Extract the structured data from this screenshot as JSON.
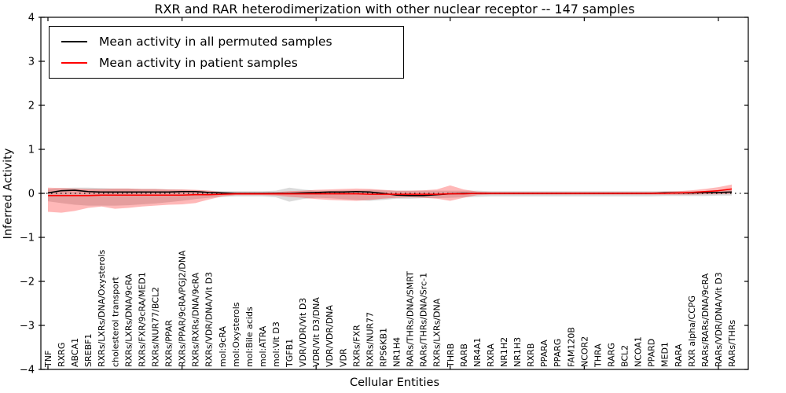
{
  "figure": {
    "background": "#ffffff"
  },
  "chart_data": {
    "type": "line",
    "title": "RXR and RAR heterodimerization with other nuclear receptor -- 147 samples",
    "xlabel": "Cellular Entities",
    "ylabel": "Inferred Activity",
    "ylim": [
      -4,
      4
    ],
    "yticks": [
      4,
      3,
      2,
      1,
      0,
      -1,
      -2,
      -3,
      -4
    ],
    "ytick_labels": [
      "4",
      "3",
      "2",
      "1",
      "0",
      "−1",
      "−2",
      "−3",
      "−4"
    ],
    "xtick_category_indices": [
      0,
      10,
      20,
      30,
      40,
      50
    ],
    "grid": false,
    "legend_position": "upper left",
    "zero_line": {
      "style": "dotted",
      "color": "#000000",
      "y": 0
    },
    "categories": [
      "TNF",
      "RXRG",
      "ABCA1",
      "SREBF1",
      "RXRs/LXRs/DNA/Oxysterols",
      "cholesterol transport",
      "RXRs/LXRs/DNA/9cRA",
      "RXRs/FXR/9cRA/MED1",
      "RXRs/NUR77/BCL2",
      "RXRs/PPAR",
      "RXRs/PPAR/9cRA/PGJ2/DNA",
      "RXRs/RXRs/DNA/9cRA",
      "RXRs/VDR/DNA/Vit D3",
      "mol:9cRA",
      "mol:Oxysterols",
      "mol:Bile acids",
      "mol:ATRA",
      "mol:Vit D3",
      "TGFB1",
      "VDR/VDR/Vit D3",
      "VDR/Vit D3/DNA",
      "VDR/VDR/DNA",
      "VDR",
      "RXRs/FXR",
      "RXRs/NUR77",
      "RPS6KB1",
      "NR1H4",
      "RARs/THRs/DNA/SMRT",
      "RARs/THRs/DNA/Src-1",
      "RXRs/LXRs/DNA",
      "THRB",
      "RARB",
      "NR4A1",
      "RXRA",
      "NR1H2",
      "NR1H3",
      "RXRB",
      "PPARA",
      "PPARG",
      "FAM120B",
      "NCOR2",
      "THRA",
      "RARG",
      "BCL2",
      "NCOA1",
      "PPARD",
      "MED1",
      "RARA",
      "RXR alpha/CCPG",
      "RARs/RARs/DNA/9cRA",
      "RARs/VDR/DNA/Vit D3",
      "RARs/THRs"
    ],
    "series": [
      {
        "name": "Mean activity in all permuted samples",
        "color": "#000000",
        "values": [
          0.01,
          0.06,
          0.07,
          0.04,
          0.03,
          0.03,
          0.03,
          0.03,
          0.03,
          0.03,
          0.04,
          0.04,
          0.02,
          0.01,
          0.0,
          0.0,
          0.0,
          0.0,
          0.0,
          0.01,
          0.02,
          0.03,
          0.03,
          0.04,
          0.03,
          0.0,
          -0.04,
          -0.05,
          -0.05,
          -0.03,
          -0.01,
          0.0,
          0.0,
          0.0,
          0.0,
          0.0,
          0.0,
          0.0,
          0.0,
          0.0,
          0.0,
          0.0,
          0.0,
          0.0,
          0.0,
          0.0,
          0.01,
          0.01,
          0.01,
          0.02,
          0.02,
          0.03
        ]
      },
      {
        "name": "Mean activity in patient samples",
        "color": "#ff0000",
        "values": [
          -0.05,
          -0.05,
          -0.05,
          -0.05,
          -0.04,
          -0.04,
          -0.04,
          -0.04,
          -0.04,
          -0.04,
          -0.04,
          -0.03,
          -0.03,
          -0.02,
          -0.01,
          -0.01,
          -0.01,
          -0.01,
          -0.01,
          -0.01,
          -0.01,
          -0.01,
          -0.01,
          -0.01,
          -0.02,
          -0.02,
          -0.02,
          -0.02,
          -0.02,
          -0.02,
          -0.01,
          -0.01,
          0.0,
          0.0,
          0.0,
          0.0,
          0.0,
          0.0,
          0.0,
          0.0,
          0.0,
          0.0,
          0.0,
          0.0,
          0.0,
          0.0,
          0.0,
          0.01,
          0.02,
          0.04,
          0.06,
          0.1
        ]
      }
    ],
    "bands": [
      {
        "name": "permuted-spread",
        "color": "#000000",
        "opacity": 0.14,
        "upper": [
          0.1,
          0.12,
          0.13,
          0.13,
          0.12,
          0.11,
          0.11,
          0.1,
          0.1,
          0.09,
          0.08,
          0.07,
          0.06,
          0.05,
          0.05,
          0.05,
          0.05,
          0.06,
          0.13,
          0.09,
          0.06,
          0.06,
          0.07,
          0.07,
          0.08,
          0.07,
          0.06,
          0.06,
          0.06,
          0.06,
          0.06,
          0.06,
          0.06,
          0.05,
          0.05,
          0.05,
          0.05,
          0.05,
          0.05,
          0.05,
          0.05,
          0.05,
          0.05,
          0.05,
          0.05,
          0.05,
          0.05,
          0.05,
          0.05,
          0.05,
          0.06,
          0.07
        ],
        "lower": [
          -0.18,
          -0.22,
          -0.26,
          -0.28,
          -0.28,
          -0.28,
          -0.27,
          -0.25,
          -0.23,
          -0.2,
          -0.17,
          -0.13,
          -0.1,
          -0.08,
          -0.07,
          -0.07,
          -0.07,
          -0.09,
          -0.19,
          -0.13,
          -0.1,
          -0.11,
          -0.13,
          -0.15,
          -0.17,
          -0.15,
          -0.12,
          -0.12,
          -0.11,
          -0.11,
          -0.1,
          -0.09,
          -0.08,
          -0.07,
          -0.07,
          -0.07,
          -0.07,
          -0.07,
          -0.07,
          -0.07,
          -0.07,
          -0.07,
          -0.07,
          -0.07,
          -0.07,
          -0.07,
          -0.06,
          -0.06,
          -0.06,
          -0.06,
          -0.05,
          -0.05
        ]
      },
      {
        "name": "patient-spread",
        "color": "#ff0000",
        "opacity": 0.28,
        "upper": [
          0.13,
          0.12,
          0.11,
          0.1,
          0.1,
          0.11,
          0.11,
          0.1,
          0.1,
          0.09,
          0.09,
          0.08,
          0.06,
          0.03,
          0.02,
          0.02,
          0.02,
          0.03,
          0.05,
          0.06,
          0.08,
          0.09,
          0.1,
          0.11,
          0.1,
          0.08,
          0.06,
          0.06,
          0.07,
          0.09,
          0.18,
          0.09,
          0.04,
          0.03,
          0.03,
          0.03,
          0.03,
          0.03,
          0.03,
          0.03,
          0.03,
          0.03,
          0.03,
          0.03,
          0.03,
          0.03,
          0.04,
          0.05,
          0.07,
          0.1,
          0.14,
          0.2
        ],
        "lower": [
          -0.42,
          -0.44,
          -0.4,
          -0.33,
          -0.3,
          -0.35,
          -0.33,
          -0.3,
          -0.28,
          -0.26,
          -0.25,
          -0.22,
          -0.14,
          -0.07,
          -0.04,
          -0.04,
          -0.04,
          -0.05,
          -0.08,
          -0.1,
          -0.13,
          -0.15,
          -0.16,
          -0.17,
          -0.15,
          -0.12,
          -0.1,
          -0.09,
          -0.1,
          -0.12,
          -0.17,
          -0.1,
          -0.04,
          -0.03,
          -0.03,
          -0.03,
          -0.03,
          -0.03,
          -0.03,
          -0.03,
          -0.03,
          -0.03,
          -0.03,
          -0.03,
          -0.03,
          -0.03,
          -0.03,
          -0.03,
          -0.03,
          -0.02,
          -0.02,
          -0.01
        ]
      }
    ]
  }
}
